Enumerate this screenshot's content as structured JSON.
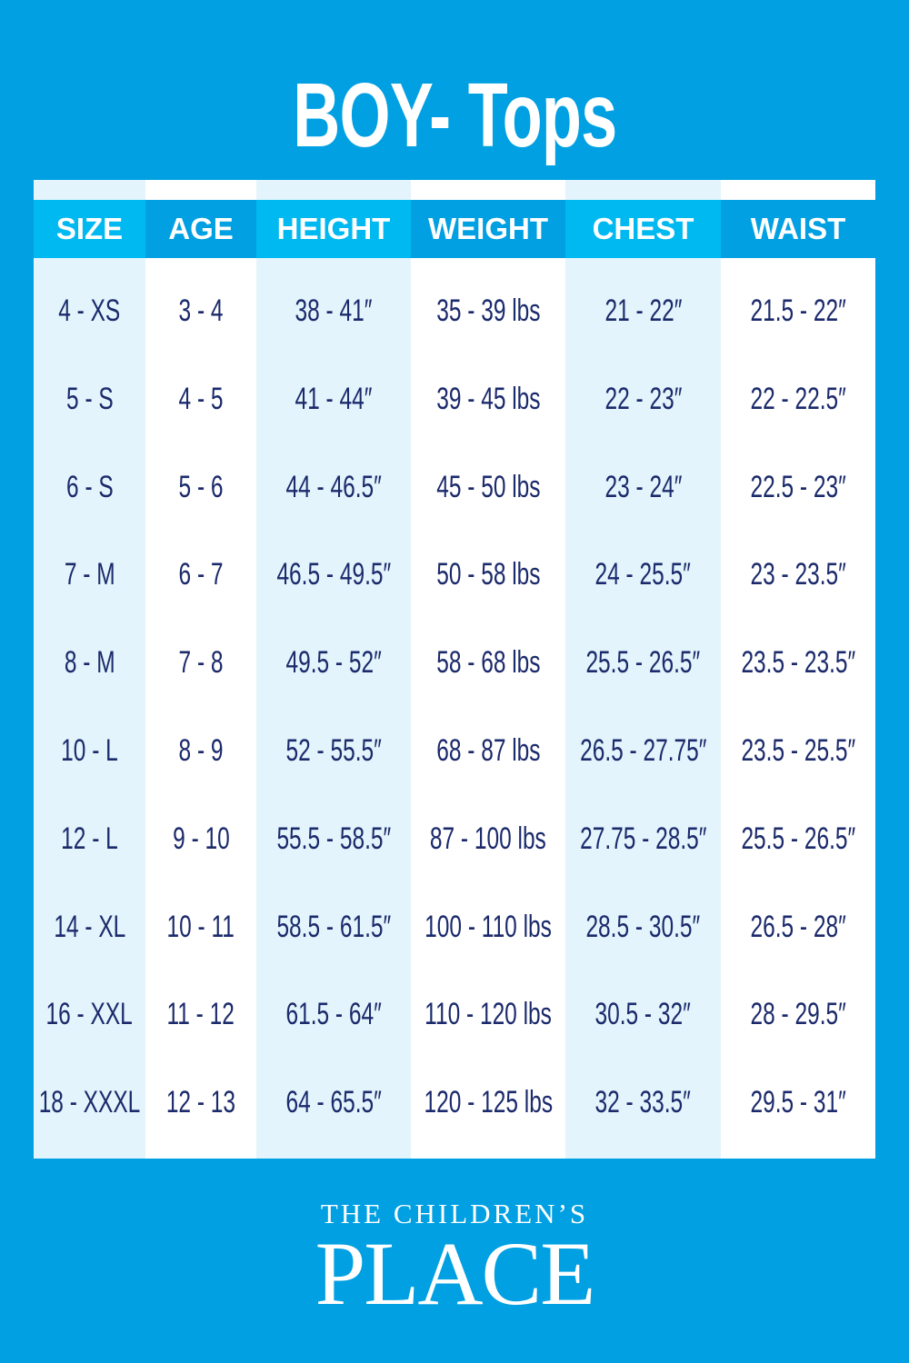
{
  "title": "BOY- Tops",
  "columns": [
    "SIZE",
    "AGE",
    "HEIGHT",
    "WEIGHT",
    "CHEST",
    "WAIST"
  ],
  "rows": [
    [
      "4 - XS",
      "3 - 4",
      "38 - 41″",
      "35 - 39 lbs",
      "21 - 22″",
      "21.5 - 22″"
    ],
    [
      "5 - S",
      "4 - 5",
      "41 - 44″",
      "39 - 45 lbs",
      "22 - 23″",
      "22 - 22.5″"
    ],
    [
      "6 - S",
      "5 - 6",
      "44 - 46.5″",
      "45 - 50 lbs",
      "23 - 24″",
      "22.5 - 23″"
    ],
    [
      "7 - M",
      "6 - 7",
      "46.5 - 49.5″",
      "50 - 58 lbs",
      "24 - 25.5″",
      "23 - 23.5″"
    ],
    [
      "8 - M",
      "7 - 8",
      "49.5 - 52″",
      "58 - 68 lbs",
      "25.5 - 26.5″",
      "23.5 - 23.5″"
    ],
    [
      "10 - L",
      "8 - 9",
      "52 - 55.5″",
      "68 - 87 lbs",
      "26.5 - 27.75″",
      "23.5 - 25.5″"
    ],
    [
      "12 - L",
      "9 - 10",
      "55.5 - 58.5″",
      "87 - 100 lbs",
      "27.75 - 28.5″",
      "25.5 - 26.5″"
    ],
    [
      "14 - XL",
      "10 - 11",
      "58.5 - 61.5″",
      "100 - 110 lbs",
      "28.5 - 30.5″",
      "26.5 - 28″"
    ],
    [
      "16 - XXL",
      "11 - 12",
      "61.5 - 64″",
      "110 - 120 lbs",
      "30.5 - 32″",
      "28 - 29.5″"
    ],
    [
      "18 - XXXL",
      "12 - 13",
      "64 - 65.5″",
      "120 - 125 lbs",
      "32 - 33.5″",
      "29.5 - 31″"
    ]
  ],
  "brand": {
    "line1": "THE CHILDREN’S",
    "line2": "PLACE"
  },
  "colors": {
    "background": "#00a0e2",
    "header_light": "#00b9f0",
    "text": "#1b2a6b",
    "stripe": "#e3f4fc"
  }
}
